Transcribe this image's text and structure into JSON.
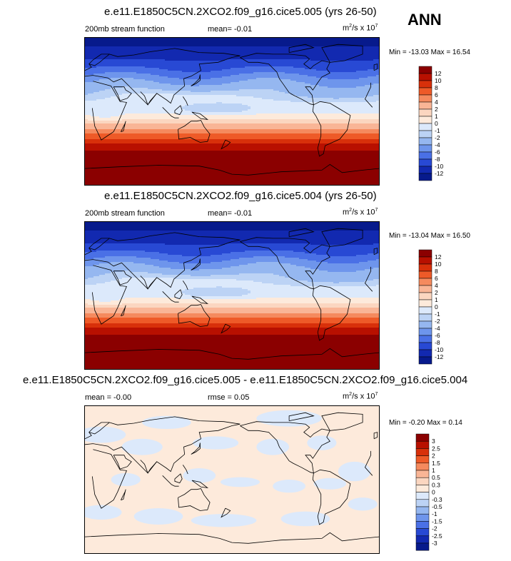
{
  "season": "ANN",
  "panels": [
    {
      "title": "e.e11.E1850C5CN.2XCO2.f09_g16.cice5.005 (yrs 26-50)",
      "left_label": "200mb stream function",
      "stat_label": "mean=  -0.01",
      "units": "m²/s x 10⁷",
      "minmax": "Min = -13.03 Max =  16.54",
      "colorbar_labels": [
        "12",
        "10",
        "8",
        "6",
        "4",
        "2",
        "1",
        "0",
        "-1",
        "-2",
        "-4",
        "-6",
        "-8",
        "-10",
        "-12"
      ]
    },
    {
      "title": "e.e11.E1850C5CN.2XCO2.f09_g16.cice5.004 (yrs 26-50)",
      "left_label": "200mb stream function",
      "stat_label": "mean=  -0.01",
      "units": "m²/s x 10⁷",
      "minmax": "Min = -13.04 Max =  16.50",
      "colorbar_labels": [
        "12",
        "10",
        "8",
        "6",
        "4",
        "2",
        "1",
        "0",
        "-1",
        "-2",
        "-4",
        "-6",
        "-8",
        "-10",
        "-12"
      ]
    },
    {
      "title": "e.e11.E1850C5CN.2XCO2.f09_g16.cice5.005 - e.e11.E1850C5CN.2XCO2.f09_g16.cice5.004",
      "left_label": "mean =  -0.00",
      "stat_label": "rmse =  0.05",
      "units": "m²/s x 10⁷",
      "minmax": "Min = -0.20 Max =  0.14",
      "colorbar_labels": [
        "3",
        "2.5",
        "2",
        "1.5",
        "1",
        "0.5",
        "0.3",
        "0",
        "-0.3",
        "-0.5",
        "-1",
        "-1.5",
        "-2",
        "-2.5",
        "-3"
      ]
    }
  ],
  "colors": {
    "palette": [
      "#8b0000",
      "#b81000",
      "#d8300a",
      "#ee5a28",
      "#f58a5e",
      "#f9b596",
      "#fbd6c0",
      "#fdeadb",
      "#dce9fb",
      "#bcd3f5",
      "#95b7f0",
      "#6e95ec",
      "#4a70e6",
      "#2849d4",
      "#1229b0",
      "#071a8c"
    ],
    "coast": "#000000"
  },
  "chart_data": [
    {
      "type": "heatmap",
      "variable": "200mb stream function",
      "units": "m²/s x 10⁷",
      "min": -13.03,
      "max": 16.54,
      "mean": -0.01,
      "levels": [
        -12,
        -10,
        -8,
        -6,
        -4,
        -2,
        -1,
        0,
        1,
        2,
        4,
        6,
        8,
        10,
        12
      ],
      "zonal_profile": {
        "lat": [
          90,
          80,
          70,
          60,
          50,
          40,
          30,
          20,
          10,
          0,
          -10,
          -20,
          -30,
          -40,
          -50,
          -60,
          -70,
          -80,
          -90
        ],
        "value": [
          -13,
          -12,
          -11,
          -9.5,
          -7.5,
          -5,
          -3,
          -1.5,
          -0.5,
          -0.3,
          1,
          3.5,
          7,
          10,
          12.5,
          14,
          15,
          16,
          16.5
        ]
      }
    },
    {
      "type": "heatmap",
      "variable": "200mb stream function",
      "units": "m²/s x 10⁷",
      "min": -13.04,
      "max": 16.5,
      "mean": -0.01,
      "levels": [
        -12,
        -10,
        -8,
        -6,
        -4,
        -2,
        -1,
        0,
        1,
        2,
        4,
        6,
        8,
        10,
        12
      ],
      "zonal_profile": {
        "lat": [
          90,
          80,
          70,
          60,
          50,
          40,
          30,
          20,
          10,
          0,
          -10,
          -20,
          -30,
          -40,
          -50,
          -60,
          -70,
          -80,
          -90
        ],
        "value": [
          -13,
          -12,
          -11,
          -9.5,
          -7.5,
          -5,
          -3,
          -1.5,
          -0.5,
          -0.3,
          1,
          3.5,
          7,
          10,
          12.5,
          14,
          15,
          16,
          16.5
        ]
      }
    },
    {
      "type": "heatmap",
      "variable": "difference",
      "units": "m²/s x 10⁷",
      "min": -0.2,
      "max": 0.14,
      "mean": -0.0,
      "rmse": 0.05,
      "levels": [
        -3,
        -2.5,
        -2,
        -1.5,
        -1,
        -0.5,
        -0.3,
        0,
        0.3,
        0.5,
        1,
        1.5,
        2,
        2.5,
        3
      ]
    }
  ]
}
